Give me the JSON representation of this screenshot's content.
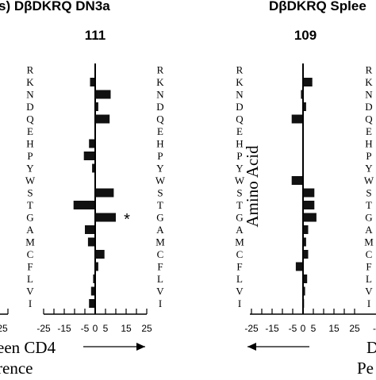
{
  "chart_data": [
    {
      "type": "bar",
      "orientation": "horizontal",
      "title": "s) DβDKRQ DN3a",
      "subtitle": "111",
      "categories": [
        "R",
        "K",
        "N",
        "D",
        "Q",
        "E",
        "H",
        "P",
        "Y",
        "W",
        "S",
        "T",
        "G",
        "A",
        "M",
        "C",
        "F",
        "L",
        "V",
        "I"
      ],
      "values": [
        0,
        -2.5,
        7.5,
        1.5,
        7,
        0,
        -3,
        -5.5,
        -1.5,
        0,
        9,
        -10.5,
        10,
        -5,
        -3.5,
        4.5,
        1.5,
        -1,
        -2,
        -3
      ],
      "annotations": [
        {
          "category": "G",
          "text": "*"
        }
      ],
      "xlim": [
        -25,
        25
      ],
      "xticks": [
        "-25",
        "-15",
        "-5",
        "0",
        "5",
        "15",
        "25"
      ],
      "xlabel": "een CD4",
      "footer_label": "rence",
      "left_axis_fragment_tick": "25",
      "arrow_direction": "right"
    },
    {
      "type": "bar",
      "orientation": "horizontal",
      "title": "DβDKRQ Splee",
      "subtitle": "109",
      "categories": [
        "R",
        "K",
        "N",
        "D",
        "Q",
        "E",
        "H",
        "P",
        "Y",
        "W",
        "S",
        "T",
        "G",
        "A",
        "M",
        "C",
        "F",
        "L",
        "V",
        "I"
      ],
      "values": [
        0,
        4.5,
        -1,
        1.5,
        -5.5,
        0,
        0,
        0,
        0,
        -5.5,
        5.5,
        5.5,
        6.5,
        2.5,
        1.5,
        2.5,
        -3.5,
        2,
        1,
        0.5
      ],
      "xlim": [
        -25,
        25
      ],
      "xticks": [
        "-25",
        "-15",
        "-5",
        "0",
        "5",
        "15",
        "25"
      ],
      "ylabel": "Amino Acid",
      "xlabel": "D",
      "footer_label": "Pe",
      "arrow_direction": "left",
      "right_axis_fragment_tick": "-"
    }
  ]
}
